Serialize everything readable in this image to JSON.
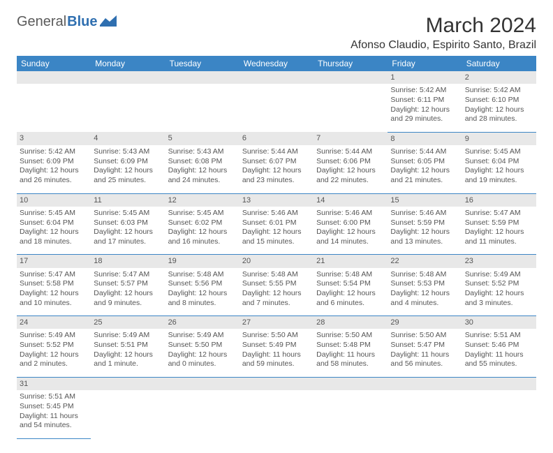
{
  "logo": {
    "text1": "General",
    "text2": "Blue"
  },
  "title": "March 2024",
  "location": "Afonso Claudio, Espirito Santo, Brazil",
  "header_bg": "#3b85c5",
  "daynum_bg": "#e8e8e8",
  "cell_border": "#3b85c5",
  "weekdays": [
    "Sunday",
    "Monday",
    "Tuesday",
    "Wednesday",
    "Thursday",
    "Friday",
    "Saturday"
  ],
  "weeks": [
    {
      "nums": [
        "",
        "",
        "",
        "",
        "",
        "1",
        "2"
      ],
      "cells": [
        "",
        "",
        "",
        "",
        "",
        "Sunrise: 5:42 AM\nSunset: 6:11 PM\nDaylight: 12 hours and 29 minutes.",
        "Sunrise: 5:42 AM\nSunset: 6:10 PM\nDaylight: 12 hours and 28 minutes."
      ]
    },
    {
      "nums": [
        "3",
        "4",
        "5",
        "6",
        "7",
        "8",
        "9"
      ],
      "cells": [
        "Sunrise: 5:42 AM\nSunset: 6:09 PM\nDaylight: 12 hours and 26 minutes.",
        "Sunrise: 5:43 AM\nSunset: 6:09 PM\nDaylight: 12 hours and 25 minutes.",
        "Sunrise: 5:43 AM\nSunset: 6:08 PM\nDaylight: 12 hours and 24 minutes.",
        "Sunrise: 5:44 AM\nSunset: 6:07 PM\nDaylight: 12 hours and 23 minutes.",
        "Sunrise: 5:44 AM\nSunset: 6:06 PM\nDaylight: 12 hours and 22 minutes.",
        "Sunrise: 5:44 AM\nSunset: 6:05 PM\nDaylight: 12 hours and 21 minutes.",
        "Sunrise: 5:45 AM\nSunset: 6:04 PM\nDaylight: 12 hours and 19 minutes."
      ]
    },
    {
      "nums": [
        "10",
        "11",
        "12",
        "13",
        "14",
        "15",
        "16"
      ],
      "cells": [
        "Sunrise: 5:45 AM\nSunset: 6:04 PM\nDaylight: 12 hours and 18 minutes.",
        "Sunrise: 5:45 AM\nSunset: 6:03 PM\nDaylight: 12 hours and 17 minutes.",
        "Sunrise: 5:45 AM\nSunset: 6:02 PM\nDaylight: 12 hours and 16 minutes.",
        "Sunrise: 5:46 AM\nSunset: 6:01 PM\nDaylight: 12 hours and 15 minutes.",
        "Sunrise: 5:46 AM\nSunset: 6:00 PM\nDaylight: 12 hours and 14 minutes.",
        "Sunrise: 5:46 AM\nSunset: 5:59 PM\nDaylight: 12 hours and 13 minutes.",
        "Sunrise: 5:47 AM\nSunset: 5:59 PM\nDaylight: 12 hours and 11 minutes."
      ]
    },
    {
      "nums": [
        "17",
        "18",
        "19",
        "20",
        "21",
        "22",
        "23"
      ],
      "cells": [
        "Sunrise: 5:47 AM\nSunset: 5:58 PM\nDaylight: 12 hours and 10 minutes.",
        "Sunrise: 5:47 AM\nSunset: 5:57 PM\nDaylight: 12 hours and 9 minutes.",
        "Sunrise: 5:48 AM\nSunset: 5:56 PM\nDaylight: 12 hours and 8 minutes.",
        "Sunrise: 5:48 AM\nSunset: 5:55 PM\nDaylight: 12 hours and 7 minutes.",
        "Sunrise: 5:48 AM\nSunset: 5:54 PM\nDaylight: 12 hours and 6 minutes.",
        "Sunrise: 5:48 AM\nSunset: 5:53 PM\nDaylight: 12 hours and 4 minutes.",
        "Sunrise: 5:49 AM\nSunset: 5:52 PM\nDaylight: 12 hours and 3 minutes."
      ]
    },
    {
      "nums": [
        "24",
        "25",
        "26",
        "27",
        "28",
        "29",
        "30"
      ],
      "cells": [
        "Sunrise: 5:49 AM\nSunset: 5:52 PM\nDaylight: 12 hours and 2 minutes.",
        "Sunrise: 5:49 AM\nSunset: 5:51 PM\nDaylight: 12 hours and 1 minute.",
        "Sunrise: 5:49 AM\nSunset: 5:50 PM\nDaylight: 12 hours and 0 minutes.",
        "Sunrise: 5:50 AM\nSunset: 5:49 PM\nDaylight: 11 hours and 59 minutes.",
        "Sunrise: 5:50 AM\nSunset: 5:48 PM\nDaylight: 11 hours and 58 minutes.",
        "Sunrise: 5:50 AM\nSunset: 5:47 PM\nDaylight: 11 hours and 56 minutes.",
        "Sunrise: 5:51 AM\nSunset: 5:46 PM\nDaylight: 11 hours and 55 minutes."
      ]
    },
    {
      "nums": [
        "31",
        "",
        "",
        "",
        "",
        "",
        ""
      ],
      "cells": [
        "Sunrise: 5:51 AM\nSunset: 5:45 PM\nDaylight: 11 hours and 54 minutes.",
        "",
        "",
        "",
        "",
        "",
        ""
      ]
    }
  ]
}
